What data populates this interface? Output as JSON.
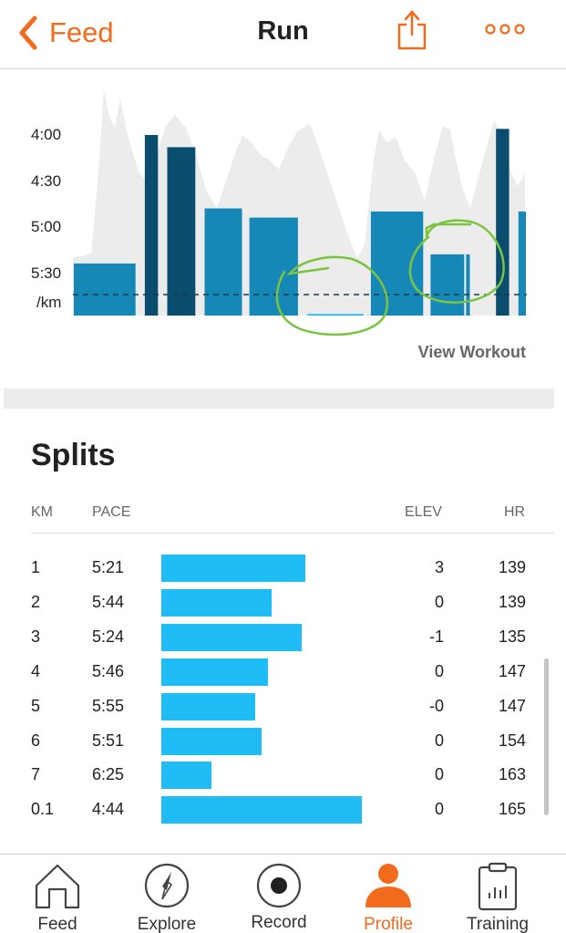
{
  "header": {
    "back_label": "Feed",
    "title": "Run"
  },
  "colors": {
    "accent": "#f26b1d",
    "bar_light": "#1fbcf5",
    "bar_mid": "#1688b8",
    "bar_dark": "#0b4d6e",
    "annotation": "#7bc440"
  },
  "chart_data": {
    "type": "bar",
    "y_unit": "/km",
    "y_ticks": [
      "4:00",
      "4:30",
      "5:00",
      "5:30"
    ],
    "ylim_seconds_per_km": [
      220,
      370
    ],
    "segments": [
      {
        "pace_sec": 324,
        "tone": "mid"
      },
      {
        "pace_sec": 360,
        "tone": "light"
      },
      {
        "pace_sec": 240,
        "tone": "dark"
      },
      {
        "pace_sec": 360,
        "tone": "light"
      },
      {
        "pace_sec": 248,
        "tone": "dark"
      },
      {
        "pace_sec": 360,
        "tone": "light"
      },
      {
        "pace_sec": 288,
        "tone": "mid"
      },
      {
        "pace_sec": 360,
        "tone": "light"
      },
      {
        "pace_sec": 294,
        "tone": "mid"
      },
      {
        "pace_sec": 360,
        "tone": "light"
      },
      {
        "pace_sec": 357,
        "tone": "light"
      },
      {
        "pace_sec": 360,
        "tone": "light"
      },
      {
        "pace_sec": 290,
        "tone": "mid"
      },
      {
        "pace_sec": 360,
        "tone": "light"
      },
      {
        "pace_sec": 318,
        "tone": "mid"
      },
      {
        "pace_sec": 318,
        "tone": "mid"
      },
      {
        "pace_sec": 360,
        "tone": "light"
      },
      {
        "pace_sec": 236,
        "tone": "dark"
      },
      {
        "pace_sec": 360,
        "tone": "light"
      },
      {
        "pace_sec": 290,
        "tone": "mid"
      }
    ],
    "grid": false
  },
  "view_workout_label": "View Workout",
  "splits": {
    "title": "Splits",
    "headers": {
      "km": "KM",
      "pace": "PACE",
      "elev": "ELEV",
      "hr": "HR"
    },
    "rows": [
      {
        "km": "1",
        "pace": "5:21",
        "bar_fraction": 0.72,
        "elev": "3",
        "hr": "139"
      },
      {
        "km": "2",
        "pace": "5:44",
        "bar_fraction": 0.55,
        "elev": "0",
        "hr": "139"
      },
      {
        "km": "3",
        "pace": "5:24",
        "bar_fraction": 0.7,
        "elev": "-1",
        "hr": "135"
      },
      {
        "km": "4",
        "pace": "5:46",
        "bar_fraction": 0.53,
        "elev": "0",
        "hr": "147"
      },
      {
        "km": "5",
        "pace": "5:55",
        "bar_fraction": 0.47,
        "elev": "-0",
        "hr": "147"
      },
      {
        "km": "6",
        "pace": "5:51",
        "bar_fraction": 0.5,
        "elev": "0",
        "hr": "154"
      },
      {
        "km": "7",
        "pace": "6:25",
        "bar_fraction": 0.25,
        "elev": "0",
        "hr": "163"
      },
      {
        "km": "0.1",
        "pace": "4:44",
        "bar_fraction": 1.0,
        "elev": "0",
        "hr": "165"
      }
    ]
  },
  "nav": {
    "items": [
      {
        "label": "Feed",
        "icon": "home-icon",
        "active": false
      },
      {
        "label": "Explore",
        "icon": "compass-icon",
        "active": false
      },
      {
        "label": "Record",
        "icon": "record-icon",
        "active": false
      },
      {
        "label": "Profile",
        "icon": "profile-icon",
        "active": true
      },
      {
        "label": "Training",
        "icon": "training-icon",
        "active": false
      }
    ]
  }
}
